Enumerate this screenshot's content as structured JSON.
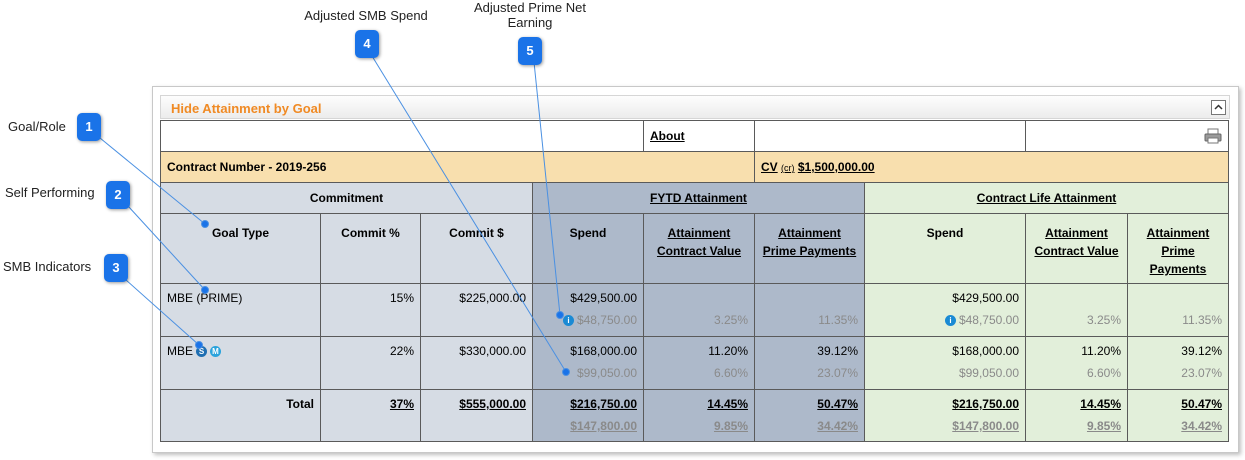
{
  "callouts": [
    {
      "number": "1",
      "label": "Goal/Role"
    },
    {
      "number": "2",
      "label": "Self Performing"
    },
    {
      "number": "3",
      "label": "SMB Indicators"
    },
    {
      "number": "4",
      "label": "Adjusted SMB Spend"
    },
    {
      "number": "5",
      "label": "Adjusted Prime Net Earning"
    }
  ],
  "panel": {
    "title": "Hide Attainment by Goal"
  },
  "table": {
    "about": "About",
    "contract_number": "Contract Number - 2019-256",
    "contract_value": {
      "label": "CV",
      "unit": "(cr)",
      "amount": "$1,500,000.00"
    },
    "groups": [
      "Commitment",
      "FYTD Attainment",
      "Contract Life Attainment"
    ],
    "headers": [
      "Goal Type",
      "Commit %",
      "Commit $",
      "Spend",
      "Attainment Contract Value",
      "Attainment Prime Payments",
      "Spend",
      "Attainment Contract Value",
      "Attainment Prime Payments"
    ],
    "rows": [
      {
        "goal": "MBE (PRIME)",
        "cells": [
          {
            "main": "15%"
          },
          {
            "main": "$225,000.00"
          },
          {
            "main": "$429,500.00",
            "adjusted": "$48,750.00",
            "info_icon": "i"
          },
          {
            "adjusted": "3.25%"
          },
          {
            "adjusted": "11.35%"
          },
          {
            "main": "$429,500.00",
            "adjusted": "$48,750.00",
            "info_icon": "i"
          },
          {
            "adjusted": "3.25%"
          },
          {
            "adjusted": "11.35%"
          }
        ]
      },
      {
        "goal": "MBE",
        "indicators": [
          "S",
          "M"
        ],
        "cells": [
          {
            "main": "22%"
          },
          {
            "main": "$330,000.00"
          },
          {
            "main": "$168,000.00",
            "adjusted": "$99,050.00"
          },
          {
            "main": "11.20%",
            "adjusted": "6.60%"
          },
          {
            "main": "39.12%",
            "adjusted": "23.07%"
          },
          {
            "main": "$168,000.00",
            "adjusted": "$99,050.00"
          },
          {
            "main": "11.20%",
            "adjusted": "6.60%"
          },
          {
            "main": "39.12%",
            "adjusted": "23.07%"
          }
        ]
      },
      {
        "goal": "Total",
        "total": true,
        "cells": [
          {
            "main": "37%"
          },
          {
            "main": "$555,000.00"
          },
          {
            "main": "$216,750.00",
            "adjusted": "$147,800.00"
          },
          {
            "main": "14.45%",
            "adjusted": "9.85%"
          },
          {
            "main": "50.47%",
            "adjusted": "34.42%"
          },
          {
            "main": "$216,750.00",
            "adjusted": "$147,800.00"
          },
          {
            "main": "14.45%",
            "adjusted": "9.85%"
          },
          {
            "main": "50.47%",
            "adjusted": "34.42%"
          }
        ]
      }
    ]
  }
}
